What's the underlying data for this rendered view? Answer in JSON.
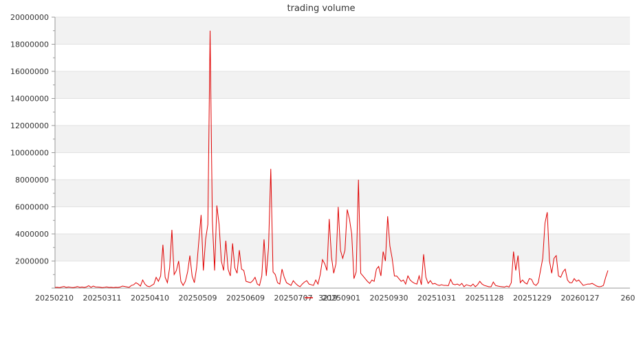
{
  "chart_data": {
    "type": "line",
    "title": "trading volume",
    "xlabel": "",
    "ylabel": "",
    "ylim": [
      0,
      20000000
    ],
    "yticks": [
      0,
      2000000,
      4000000,
      6000000,
      8000000,
      10000000,
      12000000,
      14000000,
      16000000,
      18000000,
      20000000
    ],
    "ytick_labels": [
      "",
      "2000000",
      "4000000",
      "6000000",
      "8000000",
      "10000000",
      "12000000",
      "14000000",
      "16000000",
      "18000000",
      "20000000"
    ],
    "xtick_labels": [
      "20250210",
      "20250311",
      "20250410",
      "20250509",
      "20250609",
      "20250707",
      "20250901",
      "20250930",
      "20251031",
      "20251128",
      "20251229",
      "20260127",
      "260"
    ],
    "grid": "horizontal bands",
    "legend": "bottom-center",
    "series_color": "#e00000",
    "series": [
      {
        "name": "3219",
        "values": [
          50000,
          60000,
          40000,
          80000,
          120000,
          50000,
          90000,
          60000,
          40000,
          70000,
          110000,
          60000,
          80000,
          50000,
          90000,
          180000,
          60000,
          150000,
          90000,
          80000,
          70000,
          40000,
          60000,
          90000,
          50000,
          60000,
          40000,
          60000,
          50000,
          80000,
          150000,
          120000,
          90000,
          60000,
          200000,
          250000,
          400000,
          300000,
          150000,
          600000,
          300000,
          150000,
          100000,
          200000,
          300000,
          800000,
          500000,
          900000,
          3200000,
          800000,
          400000,
          1500000,
          4300000,
          1000000,
          1300000,
          2000000,
          500000,
          200000,
          500000,
          1200000,
          2400000,
          900000,
          400000,
          1500000,
          3500000,
          5400000,
          1300000,
          3600000,
          4700000,
          19000000,
          5000000,
          1300000,
          6100000,
          4700000,
          2000000,
          1300000,
          3500000,
          1400000,
          900000,
          3300000,
          1500000,
          1100000,
          2800000,
          1400000,
          1300000,
          500000,
          450000,
          400000,
          550000,
          800000,
          300000,
          200000,
          900000,
          3600000,
          900000,
          3000000,
          8800000,
          1200000,
          1000000,
          400000,
          300000,
          1400000,
          800000,
          400000,
          300000,
          200000,
          550000,
          350000,
          200000,
          100000,
          300000,
          450000,
          550000,
          300000,
          250000,
          200000,
          600000,
          300000,
          1000000,
          2100000,
          1800000,
          1300000,
          5100000,
          2300000,
          1100000,
          1800000,
          6000000,
          2800000,
          2200000,
          2800000,
          5800000,
          5100000,
          4000000,
          700000,
          1200000,
          8000000,
          1100000,
          900000,
          700000,
          500000,
          350000,
          600000,
          500000,
          1400000,
          1600000,
          900000,
          2700000,
          2000000,
          5300000,
          3100000,
          2200000,
          900000,
          900000,
          700000,
          500000,
          600000,
          300000,
          900000,
          600000,
          450000,
          350000,
          300000,
          900000,
          250000,
          2500000,
          800000,
          350000,
          550000,
          300000,
          350000,
          250000,
          200000,
          250000,
          200000,
          200000,
          180000,
          650000,
          300000,
          250000,
          300000,
          200000,
          350000,
          100000,
          250000,
          200000,
          150000,
          300000,
          100000,
          250000,
          500000,
          300000,
          200000,
          150000,
          100000,
          100000,
          450000,
          200000,
          150000,
          120000,
          100000,
          80000,
          150000,
          80000,
          400000,
          2700000,
          1300000,
          2400000,
          400000,
          600000,
          400000,
          300000,
          700000,
          650000,
          300000,
          200000,
          400000,
          1300000,
          2200000,
          4800000,
          5600000,
          2000000,
          1100000,
          2200000,
          2400000,
          900000,
          800000,
          1200000,
          1400000,
          600000,
          400000,
          400000,
          700000,
          500000,
          600000,
          400000,
          200000,
          250000,
          300000,
          300000,
          350000,
          250000,
          150000,
          100000,
          120000,
          200000,
          800000,
          1300000
        ]
      }
    ]
  }
}
